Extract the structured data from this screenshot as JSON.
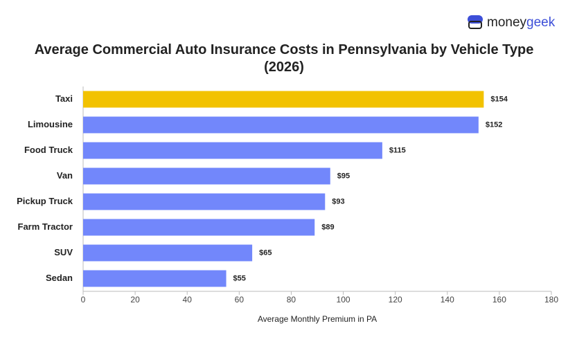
{
  "chart_data": {
    "type": "bar",
    "orientation": "horizontal",
    "logo": [
      "money",
      "geek"
    ],
    "title": "Average Commercial Auto Insurance Costs in Pennsylvania by Vehicle Type (2026)",
    "x_label": "Average Monthly Premium in PA",
    "categories": [
      "Taxi",
      "Limousine",
      "Food Truck",
      "Van",
      "Pickup Truck",
      "Farm Tractor",
      "SUV",
      "Sedan"
    ],
    "values": [
      154,
      152,
      115,
      95,
      93,
      89,
      65,
      55
    ],
    "value_labels": [
      "$154",
      "$152",
      "$115",
      "$95",
      "$93",
      "$89",
      "$65",
      "$55"
    ],
    "colors": [
      "#f2c200",
      "#7287fb",
      "#7287fb",
      "#7287fb",
      "#7287fb",
      "#7287fb",
      "#7287fb",
      "#7287fb"
    ],
    "xlim": [
      0,
      180
    ],
    "xticks": [
      0,
      20,
      40,
      60,
      80,
      100,
      120,
      140,
      160,
      180
    ]
  }
}
